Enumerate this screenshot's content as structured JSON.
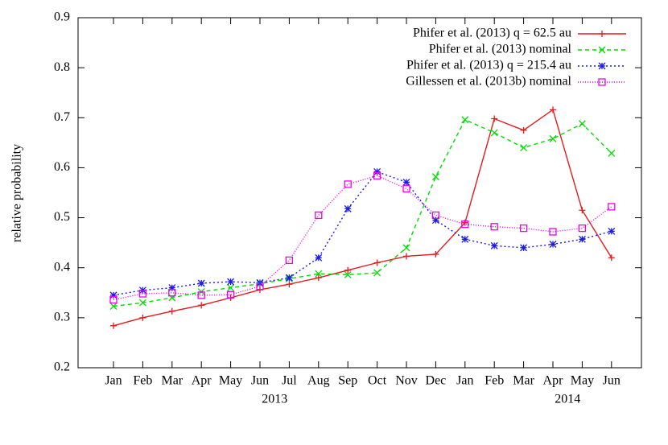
{
  "chart_data": {
    "type": "line",
    "y_label": "relative probability",
    "categories": [
      "Jan",
      "Feb",
      "Mar",
      "Apr",
      "May",
      "Jun",
      "Jul",
      "Aug",
      "Sep",
      "Oct",
      "Nov",
      "Dec",
      "Jan",
      "Feb",
      "Mar",
      "Apr",
      "May",
      "Jun"
    ],
    "years": [
      "2013",
      "2014"
    ],
    "ylim": [
      0.2,
      0.9
    ],
    "yticks": [
      0.2,
      0.3,
      0.4,
      0.5,
      0.6,
      0.7,
      0.8,
      0.9
    ],
    "legend": "upper right",
    "series": [
      {
        "name": "Phifer et al. (2013) q = 62.5 au",
        "color": "#e41a1c",
        "dash": "solid",
        "marker": "plus",
        "values": [
          0.284,
          0.3,
          0.313,
          0.325,
          0.34,
          0.356,
          0.367,
          0.38,
          0.395,
          0.41,
          0.423,
          0.427,
          0.49,
          0.698,
          0.675,
          0.716,
          0.515,
          0.42
        ]
      },
      {
        "name": "Phifer et al. (2013) nominal",
        "color": "#00dd00",
        "dash": "dashed",
        "marker": "cross",
        "values": [
          0.323,
          0.33,
          0.34,
          0.352,
          0.36,
          0.368,
          0.378,
          0.388,
          0.386,
          0.39,
          0.44,
          0.582,
          0.696,
          0.67,
          0.64,
          0.658,
          0.688,
          0.629
        ]
      },
      {
        "name": "Phifer et al. (2013) q = 215.4 au",
        "color": "#1a1aee",
        "dash": "dotted",
        "marker": "star",
        "values": [
          0.345,
          0.355,
          0.36,
          0.369,
          0.372,
          0.37,
          0.38,
          0.42,
          0.518,
          0.592,
          0.571,
          0.495,
          0.457,
          0.444,
          0.44,
          0.447,
          0.457,
          0.473
        ]
      },
      {
        "name": "Gillessen et al. (2013b) nominal",
        "color": "#ee00ee",
        "dash": "finedotted",
        "marker": "square",
        "values": [
          0.336,
          0.348,
          0.35,
          0.345,
          0.346,
          0.363,
          0.415,
          0.505,
          0.567,
          0.584,
          0.558,
          0.505,
          0.487,
          0.482,
          0.479,
          0.472,
          0.479,
          0.522
        ]
      }
    ]
  }
}
